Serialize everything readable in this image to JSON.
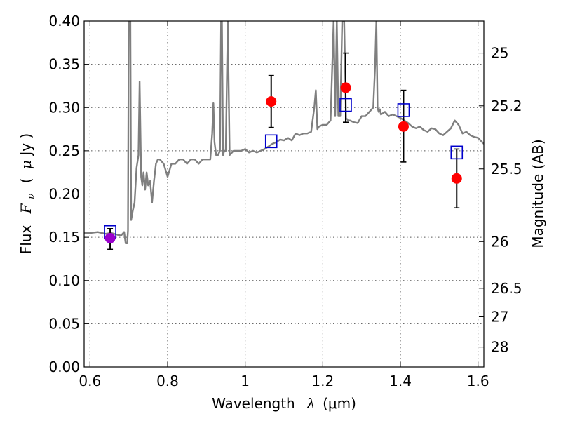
{
  "chart_data": {
    "type": "scatter",
    "title": "",
    "xlabel_prefix": "Wavelength",
    "xlabel_lambda": "λ",
    "xlabel_unit": "(μm)",
    "ylabel_prefix": "Flux",
    "ylabel_symbol": "F",
    "ylabel_sub": "ν",
    "ylabel_unit_open": "(",
    "ylabel_unit_mu": "μ",
    "ylabel_unit_rest": "Jy )",
    "y2label": "Magnitude (AB)",
    "xlim": [
      0.585,
      1.615
    ],
    "ylim": [
      0.0,
      0.4
    ],
    "grid": true,
    "x_ticks": [
      0.6,
      0.8,
      1.0,
      1.2,
      1.4,
      1.6
    ],
    "x_tick_labels": [
      "0.6",
      "0.8",
      "1",
      "1.2",
      "1.4",
      "1.6"
    ],
    "y_ticks": [
      0.0,
      0.05,
      0.1,
      0.15,
      0.2,
      0.25,
      0.3,
      0.35,
      0.4
    ],
    "y_tick_labels": [
      "0.00",
      "0.05",
      "0.10",
      "0.15",
      "0.20",
      "0.25",
      "0.30",
      "0.35",
      "0.40"
    ],
    "y2_ticks": [
      {
        "label": "25",
        "flux": 0.363
      },
      {
        "label": "25.2",
        "flux": 0.302
      },
      {
        "label": "25.5",
        "flux": 0.229
      },
      {
        "label": "26",
        "flux": 0.145
      },
      {
        "label": "26.5",
        "flux": 0.091
      },
      {
        "label": "27",
        "flux": 0.058
      },
      {
        "label": "28",
        "flux": 0.023
      }
    ],
    "colors": {
      "spectrum": "#7f7f7f",
      "observed": "#ff0000",
      "observed_first": "#9900cc",
      "model_box": "#0000cc",
      "errorbar": "#000000",
      "grid": "#555555"
    },
    "series": [
      {
        "kind": "spectrum",
        "x": [
          0.585,
          0.6,
          0.62,
          0.64,
          0.655,
          0.67,
          0.68,
          0.688,
          0.692,
          0.696,
          0.698,
          0.7,
          0.702,
          0.704,
          0.706,
          0.71,
          0.715,
          0.72,
          0.725,
          0.728,
          0.732,
          0.735,
          0.738,
          0.742,
          0.746,
          0.75,
          0.755,
          0.76,
          0.765,
          0.77,
          0.775,
          0.78,
          0.79,
          0.8,
          0.81,
          0.82,
          0.83,
          0.84,
          0.85,
          0.86,
          0.87,
          0.88,
          0.89,
          0.9,
          0.91,
          0.915,
          0.918,
          0.921,
          0.925,
          0.93,
          0.935,
          0.938,
          0.94,
          0.943,
          0.946,
          0.95,
          0.955,
          0.96,
          0.97,
          0.98,
          0.99,
          1.0,
          1.01,
          1.02,
          1.03,
          1.04,
          1.05,
          1.06,
          1.07,
          1.08,
          1.09,
          1.1,
          1.11,
          1.12,
          1.13,
          1.14,
          1.15,
          1.16,
          1.17,
          1.178,
          1.182,
          1.186,
          1.19,
          1.2,
          1.21,
          1.22,
          1.228,
          1.232,
          1.236,
          1.24,
          1.245,
          1.25,
          1.255,
          1.26,
          1.265,
          1.27,
          1.275,
          1.28,
          1.29,
          1.3,
          1.31,
          1.32,
          1.33,
          1.335,
          1.338,
          1.341,
          1.344,
          1.347,
          1.35,
          1.36,
          1.37,
          1.38,
          1.39,
          1.4,
          1.41,
          1.42,
          1.43,
          1.44,
          1.45,
          1.46,
          1.47,
          1.48,
          1.49,
          1.5,
          1.51,
          1.52,
          1.53,
          1.54,
          1.55,
          1.56,
          1.57,
          1.58,
          1.59,
          1.6,
          1.615
        ],
        "y": [
          0.155,
          0.155,
          0.156,
          0.154,
          0.155,
          0.153,
          0.152,
          0.156,
          0.143,
          0.143,
          0.158,
          0.4,
          0.4,
          0.4,
          0.17,
          0.18,
          0.19,
          0.23,
          0.245,
          0.33,
          0.22,
          0.21,
          0.225,
          0.205,
          0.225,
          0.21,
          0.215,
          0.19,
          0.215,
          0.235,
          0.24,
          0.24,
          0.235,
          0.22,
          0.235,
          0.235,
          0.24,
          0.24,
          0.235,
          0.24,
          0.24,
          0.235,
          0.24,
          0.24,
          0.24,
          0.27,
          0.305,
          0.26,
          0.245,
          0.245,
          0.25,
          0.4,
          0.4,
          0.245,
          0.25,
          0.25,
          0.4,
          0.245,
          0.25,
          0.25,
          0.25,
          0.252,
          0.248,
          0.25,
          0.248,
          0.25,
          0.252,
          0.255,
          0.258,
          0.26,
          0.263,
          0.262,
          0.265,
          0.262,
          0.27,
          0.268,
          0.27,
          0.27,
          0.272,
          0.3,
          0.32,
          0.275,
          0.278,
          0.28,
          0.28,
          0.285,
          0.4,
          0.29,
          0.4,
          0.29,
          0.29,
          0.4,
          0.4,
          0.288,
          0.285,
          0.285,
          0.284,
          0.283,
          0.282,
          0.29,
          0.29,
          0.295,
          0.3,
          0.35,
          0.4,
          0.3,
          0.295,
          0.298,
          0.292,
          0.295,
          0.29,
          0.292,
          0.29,
          0.288,
          0.285,
          0.282,
          0.278,
          0.276,
          0.278,
          0.274,
          0.272,
          0.276,
          0.275,
          0.27,
          0.268,
          0.272,
          0.276,
          0.285,
          0.28,
          0.27,
          0.272,
          0.268,
          0.266,
          0.265,
          0.258
        ]
      },
      {
        "kind": "model-boxes",
        "x": [
          0.652,
          1.067,
          1.259,
          1.408,
          1.545
        ],
        "y": [
          0.156,
          0.261,
          0.303,
          0.297,
          0.248
        ]
      },
      {
        "kind": "observed-points",
        "x": [
          0.652,
          1.067,
          1.259,
          1.408,
          1.545
        ],
        "y": [
          0.149,
          0.307,
          0.323,
          0.278,
          0.218
        ],
        "err_low": [
          0.013,
          0.03,
          0.04,
          0.041,
          0.034
        ],
        "err_high": [
          0.011,
          0.03,
          0.04,
          0.042,
          0.034
        ]
      }
    ]
  }
}
